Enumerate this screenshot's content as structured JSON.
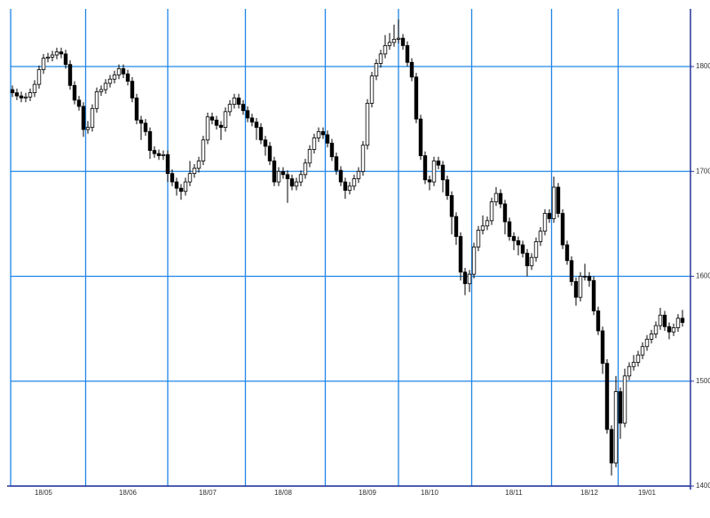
{
  "chart_data": {
    "type": "candlestick",
    "ylim": [
      1400,
      1855
    ],
    "yticks": [
      1400,
      1500,
      1600,
      1700,
      1800
    ],
    "xticks": [
      {
        "value": 7,
        "label": "18/05"
      },
      {
        "value": 26,
        "label": "18/06"
      },
      {
        "value": 44,
        "label": "18/07"
      },
      {
        "value": 61,
        "label": "18/08"
      },
      {
        "value": 80,
        "label": "18/09"
      },
      {
        "value": 94,
        "label": "18/10"
      },
      {
        "value": 113,
        "label": "18/11"
      },
      {
        "value": 130,
        "label": "18/12"
      },
      {
        "value": 143,
        "label": "19/01"
      }
    ],
    "grid": true,
    "grid_color": "#1f86e8",
    "axis_color": "#27339a",
    "up_color": "#ffffff",
    "down_color": "#000000",
    "open": [
      1778,
      1775,
      1772,
      1770,
      1771,
      1775,
      1783,
      1797,
      1808,
      1809,
      1811,
      1814,
      1812,
      1802,
      1782,
      1768,
      1762,
      1740,
      1742,
      1760,
      1776,
      1778,
      1784,
      1788,
      1792,
      1798,
      1793,
      1786,
      1770,
      1749,
      1746,
      1738,
      1720,
      1717,
      1715,
      1716,
      1698,
      1690,
      1684,
      1681,
      1690,
      1698,
      1703,
      1710,
      1730,
      1752,
      1749,
      1744,
      1742,
      1757,
      1764,
      1770,
      1764,
      1758,
      1751,
      1747,
      1742,
      1730,
      1724,
      1710,
      1690,
      1700,
      1697,
      1693,
      1686,
      1690,
      1697,
      1708,
      1721,
      1732,
      1738,
      1735,
      1727,
      1714,
      1701,
      1690,
      1682,
      1686,
      1693,
      1700,
      1725,
      1765,
      1791,
      1803,
      1812,
      1820,
      1823,
      1826,
      1827,
      1820,
      1804,
      1790,
      1750,
      1715,
      1692,
      1690,
      1710,
      1706,
      1692,
      1677,
      1657,
      1638,
      1604,
      1593,
      1602,
      1628,
      1644,
      1648,
      1653,
      1671,
      1679,
      1669,
      1652,
      1638,
      1634,
      1630,
      1622,
      1610,
      1618,
      1633,
      1643,
      1660,
      1655,
      1685,
      1660,
      1630,
      1615,
      1595,
      1580,
      1600,
      1600,
      1596,
      1567,
      1548,
      1517,
      1454,
      1422,
      1490,
      1460,
      1505,
      1514,
      1518,
      1525,
      1533,
      1540,
      1545,
      1553,
      1563,
      1552,
      1547,
      1551,
      1560
    ],
    "high": [
      1782,
      1779,
      1776,
      1775,
      1779,
      1787,
      1801,
      1812,
      1813,
      1815,
      1818,
      1818,
      1816,
      1806,
      1786,
      1772,
      1766,
      1748,
      1764,
      1780,
      1782,
      1788,
      1792,
      1796,
      1802,
      1802,
      1797,
      1790,
      1774,
      1753,
      1750,
      1742,
      1724,
      1721,
      1720,
      1720,
      1702,
      1694,
      1688,
      1694,
      1710,
      1707,
      1714,
      1734,
      1756,
      1756,
      1753,
      1748,
      1761,
      1768,
      1774,
      1774,
      1768,
      1762,
      1755,
      1751,
      1746,
      1734,
      1728,
      1714,
      1704,
      1704,
      1701,
      1697,
      1694,
      1701,
      1712,
      1725,
      1736,
      1742,
      1742,
      1739,
      1731,
      1718,
      1705,
      1694,
      1690,
      1697,
      1704,
      1729,
      1769,
      1795,
      1807,
      1816,
      1830,
      1832,
      1840,
      1845,
      1831,
      1824,
      1808,
      1794,
      1754,
      1719,
      1696,
      1714,
      1714,
      1710,
      1696,
      1681,
      1661,
      1642,
      1608,
      1606,
      1632,
      1648,
      1658,
      1657,
      1675,
      1685,
      1683,
      1673,
      1656,
      1642,
      1638,
      1634,
      1626,
      1622,
      1637,
      1647,
      1664,
      1664,
      1695,
      1689,
      1664,
      1634,
      1619,
      1599,
      1604,
      1612,
      1604,
      1600,
      1571,
      1552,
      1521,
      1458,
      1505,
      1494,
      1512,
      1518,
      1525,
      1529,
      1537,
      1544,
      1549,
      1557,
      1570,
      1567,
      1556,
      1555,
      1564,
      1568
    ],
    "low": [
      1771,
      1768,
      1766,
      1766,
      1767,
      1771,
      1779,
      1793,
      1804,
      1805,
      1807,
      1808,
      1798,
      1778,
      1764,
      1758,
      1733,
      1736,
      1738,
      1756,
      1772,
      1774,
      1780,
      1784,
      1788,
      1789,
      1782,
      1766,
      1745,
      1730,
      1734,
      1712,
      1713,
      1711,
      1711,
      1690,
      1686,
      1677,
      1673,
      1677,
      1686,
      1694,
      1699,
      1706,
      1726,
      1745,
      1740,
      1730,
      1738,
      1753,
      1760,
      1760,
      1754,
      1747,
      1743,
      1730,
      1726,
      1715,
      1706,
      1686,
      1686,
      1693,
      1670,
      1682,
      1682,
      1686,
      1693,
      1704,
      1717,
      1728,
      1731,
      1723,
      1710,
      1697,
      1686,
      1674,
      1678,
      1682,
      1689,
      1696,
      1721,
      1761,
      1787,
      1799,
      1808,
      1816,
      1819,
      1822,
      1816,
      1800,
      1786,
      1746,
      1711,
      1688,
      1682,
      1686,
      1702,
      1680,
      1673,
      1640,
      1630,
      1596,
      1582,
      1585,
      1598,
      1624,
      1640,
      1644,
      1649,
      1667,
      1665,
      1640,
      1634,
      1625,
      1620,
      1618,
      1600,
      1606,
      1614,
      1629,
      1639,
      1651,
      1651,
      1656,
      1626,
      1611,
      1591,
      1572,
      1576,
      1596,
      1590,
      1563,
      1544,
      1507,
      1450,
      1410,
      1418,
      1445,
      1456,
      1501,
      1510,
      1514,
      1521,
      1529,
      1536,
      1541,
      1549,
      1548,
      1540,
      1543,
      1547,
      1552
    ],
    "close": [
      1775,
      1772,
      1770,
      1771,
      1775,
      1783,
      1797,
      1808,
      1809,
      1811,
      1814,
      1812,
      1802,
      1782,
      1768,
      1762,
      1740,
      1742,
      1760,
      1776,
      1778,
      1784,
      1788,
      1792,
      1798,
      1793,
      1786,
      1770,
      1749,
      1746,
      1738,
      1720,
      1717,
      1715,
      1716,
      1698,
      1690,
      1684,
      1681,
      1690,
      1698,
      1703,
      1710,
      1730,
      1752,
      1749,
      1744,
      1742,
      1757,
      1764,
      1770,
      1764,
      1758,
      1751,
      1747,
      1742,
      1730,
      1724,
      1710,
      1690,
      1700,
      1697,
      1693,
      1686,
      1690,
      1697,
      1708,
      1721,
      1732,
      1738,
      1735,
      1727,
      1714,
      1701,
      1690,
      1682,
      1686,
      1693,
      1700,
      1725,
      1765,
      1791,
      1803,
      1812,
      1820,
      1823,
      1826,
      1827,
      1820,
      1804,
      1790,
      1750,
      1715,
      1692,
      1690,
      1710,
      1706,
      1692,
      1677,
      1657,
      1638,
      1604,
      1593,
      1602,
      1628,
      1644,
      1648,
      1653,
      1671,
      1679,
      1669,
      1652,
      1638,
      1634,
      1630,
      1622,
      1610,
      1618,
      1633,
      1643,
      1660,
      1655,
      1685,
      1660,
      1630,
      1615,
      1595,
      1580,
      1600,
      1600,
      1596,
      1567,
      1548,
      1517,
      1454,
      1422,
      1490,
      1460,
      1505,
      1514,
      1518,
      1525,
      1533,
      1540,
      1545,
      1553,
      1563,
      1552,
      1547,
      1551,
      1560,
      1556
    ]
  }
}
